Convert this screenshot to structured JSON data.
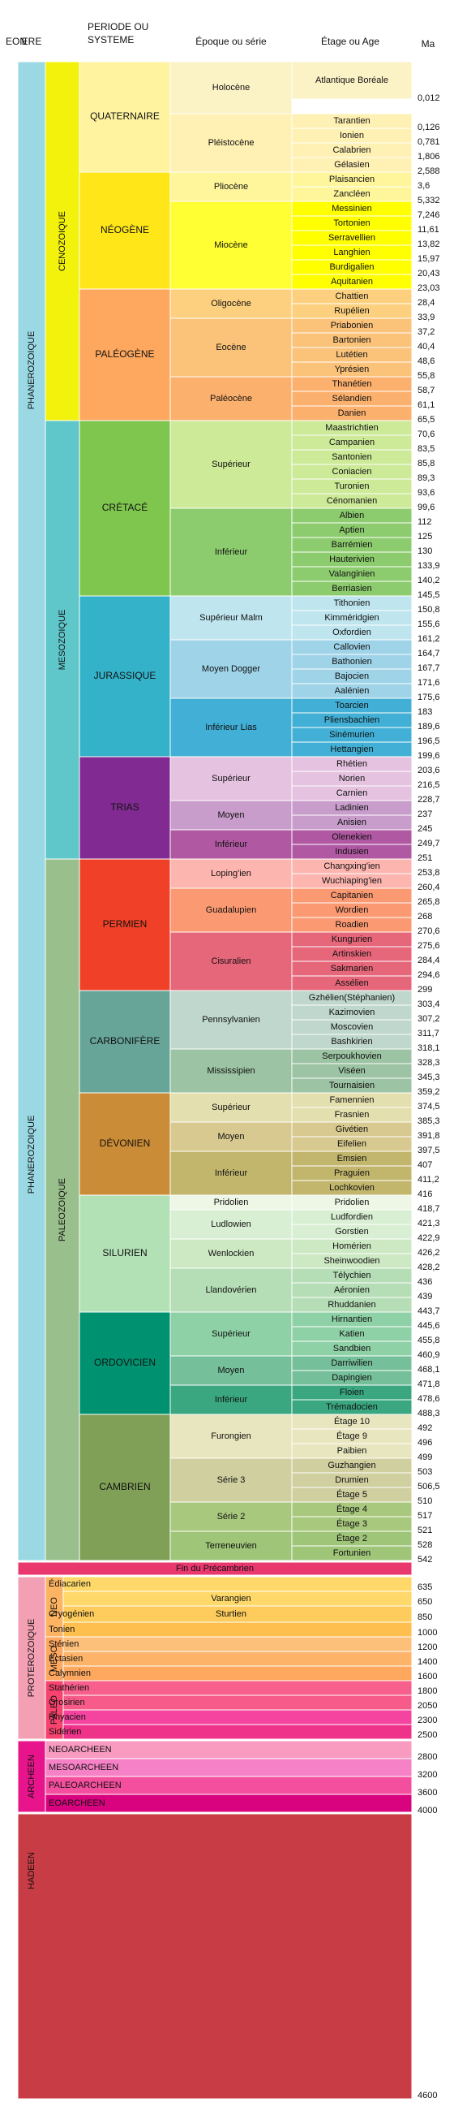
{
  "headers": {
    "eon": "EON",
    "ere": "ERE",
    "periode": "PERIODE OU SYSTEME",
    "epoque": "Époque ou série",
    "etage": "Étage ou Age",
    "ma": "Ma"
  },
  "chart_data": {
    "type": "table",
    "title": "",
    "eons": [
      {
        "name": "PHANEROZOIQUE"
      },
      {
        "name": "PROTEROZOIQUE"
      },
      {
        "name": "ARCHEEN"
      },
      {
        "name": "HADEEN"
      }
    ],
    "eras": [
      {
        "name": "CENOZOIQUE"
      },
      {
        "name": "MESOZOIQUE"
      },
      {
        "name": "PALEOZOIQUE"
      },
      {
        "name": "NEO"
      },
      {
        "name": "MESO"
      },
      {
        "name": "PALEO"
      }
    ],
    "periods": [
      "QUATERNAIRE",
      "NÉOGÈNE",
      "PALÉOGÈNE",
      "CRÉTACÉ",
      "JURASSIQUE",
      "TRIAS",
      "PERMIEN",
      "CARBONIFÈRE",
      "DÉVONIEN",
      "SILURIEN",
      "ORDOVICIEN",
      "CAMBRIEN"
    ],
    "epochs": [
      "Holocène",
      "Pléistocène",
      "Pliocène",
      "Miocène",
      "Oligocène",
      "Eocène",
      "Paléocène",
      "Supérieur",
      "Inférieur",
      "Supérieur Malm",
      "Moyen Dogger",
      "Inférieur Lias",
      "Supérieur",
      "Moyen",
      "Inférieur",
      "Loping'ien",
      "Guadalupien",
      "Cisuralien",
      "Pennsylvanien",
      "Mississipien",
      "Supérieur",
      "Moyen",
      "Inférieur",
      "Pridolien",
      "Ludlowien",
      "Wenlockien",
      "Llandovérien",
      "Supérieur",
      "Moyen",
      "Inférieur",
      "Furongien",
      "Série 3",
      "Série 2",
      "Terreneuvien"
    ],
    "stages": [
      {
        "name": "Atlantique Boréale",
        "ma": "0,012"
      },
      {
        "name": "",
        "ma": ""
      },
      {
        "name": "Tarantien",
        "ma": "0,126"
      },
      {
        "name": "Ionien",
        "ma": "0,781"
      },
      {
        "name": "Calabrien",
        "ma": "1,806"
      },
      {
        "name": "Gélasien",
        "ma": "2,588"
      },
      {
        "name": "Plaisancien",
        "ma": "3,6"
      },
      {
        "name": "Zancléen",
        "ma": "5,332"
      },
      {
        "name": "Messinien",
        "ma": "7,246"
      },
      {
        "name": "Tortonien",
        "ma": "11,61"
      },
      {
        "name": "Serravellien",
        "ma": "13,82"
      },
      {
        "name": "Langhien",
        "ma": "15,97"
      },
      {
        "name": "Burdigalien",
        "ma": "20,43"
      },
      {
        "name": "Aquitanien",
        "ma": "23,03"
      },
      {
        "name": "Chattien",
        "ma": "28,4"
      },
      {
        "name": "Rupélien",
        "ma": "33,9"
      },
      {
        "name": "Priabonien",
        "ma": "37,2"
      },
      {
        "name": "Bartonien",
        "ma": "40,4"
      },
      {
        "name": "Lutétien",
        "ma": "48,6"
      },
      {
        "name": "Yprésien",
        "ma": "55,8"
      },
      {
        "name": "Thanétien",
        "ma": "58,7"
      },
      {
        "name": "Sélandien",
        "ma": "61,1"
      },
      {
        "name": "Danien",
        "ma": "65,5"
      },
      {
        "name": "Maastrichtien",
        "ma": "70,6"
      },
      {
        "name": "Campanien",
        "ma": "83,5"
      },
      {
        "name": "Santonien",
        "ma": "85,8"
      },
      {
        "name": "Coniacien",
        "ma": "89,3"
      },
      {
        "name": "Turonien",
        "ma": "93,6"
      },
      {
        "name": "Cénomanien",
        "ma": "99,6"
      },
      {
        "name": "Albien",
        "ma": "112"
      },
      {
        "name": "Aptien",
        "ma": "125"
      },
      {
        "name": "Barrémien",
        "ma": "130"
      },
      {
        "name": "Hauterivien",
        "ma": "133,9"
      },
      {
        "name": "Valanginien",
        "ma": "140,2"
      },
      {
        "name": "Berriasien",
        "ma": "145,5"
      },
      {
        "name": "Tithonien",
        "ma": "150,8"
      },
      {
        "name": "Kimméridgien",
        "ma": "155,6"
      },
      {
        "name": "Oxfordien",
        "ma": "161,2"
      },
      {
        "name": "Callovien",
        "ma": "164,7"
      },
      {
        "name": "Bathonien",
        "ma": "167,7"
      },
      {
        "name": "Bajocien",
        "ma": "171,6"
      },
      {
        "name": "Aalénien",
        "ma": "175,6"
      },
      {
        "name": "Toarcien",
        "ma": "183"
      },
      {
        "name": "Pliensbachien",
        "ma": "189,6"
      },
      {
        "name": "Sinémurien",
        "ma": "196,5"
      },
      {
        "name": "Hettangien",
        "ma": "199,6"
      },
      {
        "name": "Rhétien",
        "ma": "203,6"
      },
      {
        "name": "Norien",
        "ma": "216,5"
      },
      {
        "name": "Carnien",
        "ma": "228,7"
      },
      {
        "name": "Ladinien",
        "ma": "237"
      },
      {
        "name": "Anisien",
        "ma": "245"
      },
      {
        "name": "Olenekien",
        "ma": "249,7"
      },
      {
        "name": "Indusien",
        "ma": "251"
      },
      {
        "name": "Changxing'ien",
        "ma": "253,8"
      },
      {
        "name": "Wuchiaping'ien",
        "ma": "260,4"
      },
      {
        "name": "Capitanien",
        "ma": "265,8"
      },
      {
        "name": "Wordien",
        "ma": "268"
      },
      {
        "name": "Roadien",
        "ma": "270,6"
      },
      {
        "name": "Kungurien",
        "ma": "275,6"
      },
      {
        "name": "Artinskien",
        "ma": "284,4"
      },
      {
        "name": "Sakmarien",
        "ma": "294,6"
      },
      {
        "name": "Assélien",
        "ma": "299"
      },
      {
        "name": "Gzhélien(Stéphanien)",
        "ma": "303,4"
      },
      {
        "name": "Kazimovien",
        "ma": "307,2"
      },
      {
        "name": "Moscovien",
        "ma": "311,7"
      },
      {
        "name": "Bashkirien",
        "ma": "318,1"
      },
      {
        "name": "Serpoukhovien",
        "ma": "328,3"
      },
      {
        "name": "Viséen",
        "ma": "345,3"
      },
      {
        "name": "Tournaisien",
        "ma": "359,2"
      },
      {
        "name": "Famennien",
        "ma": "374,5"
      },
      {
        "name": "Frasnien",
        "ma": "385,3"
      },
      {
        "name": "Givétien",
        "ma": "391,8"
      },
      {
        "name": "Eifelien",
        "ma": "397,5"
      },
      {
        "name": "Emsien",
        "ma": "407"
      },
      {
        "name": "Praguien",
        "ma": "411,2"
      },
      {
        "name": "Lochkovien",
        "ma": "416"
      },
      {
        "name": "Pridolien",
        "ma": "418,7"
      },
      {
        "name": "Ludfordien",
        "ma": "421,3"
      },
      {
        "name": "Gorstien",
        "ma": "422,9"
      },
      {
        "name": "Homérien",
        "ma": "426,2"
      },
      {
        "name": "Sheinwoodien",
        "ma": "428,2"
      },
      {
        "name": "Télychien",
        "ma": "436"
      },
      {
        "name": "Aéronien",
        "ma": "439"
      },
      {
        "name": "Rhuddanien",
        "ma": "443,7"
      },
      {
        "name": "Hirnantien",
        "ma": "445,6"
      },
      {
        "name": "Katien",
        "ma": "455,8"
      },
      {
        "name": "Sandbien",
        "ma": "460,9"
      },
      {
        "name": "Darriwilien",
        "ma": "468,1"
      },
      {
        "name": "Dapingien",
        "ma": "471,8"
      },
      {
        "name": "Floien",
        "ma": "478,6"
      },
      {
        "name": "Trémadocien",
        "ma": "488,3"
      },
      {
        "name": "Étage 10",
        "ma": "492"
      },
      {
        "name": "Étage 9",
        "ma": "496"
      },
      {
        "name": "Paibien",
        "ma": "499"
      },
      {
        "name": "Guzhangien",
        "ma": "503"
      },
      {
        "name": "Drumien",
        "ma": "506,5"
      },
      {
        "name": "Étage 5",
        "ma": "510"
      },
      {
        "name": "Étage 4",
        "ma": "517"
      },
      {
        "name": "Étage 3",
        "ma": "521"
      },
      {
        "name": "Étage 2",
        "ma": "528"
      },
      {
        "name": "Fortunien",
        "ma": "542"
      }
    ],
    "precambrian_banner": "Fin du Précambrien",
    "precambrian_rows": [
      {
        "name": "Édiacarien",
        "stage": "",
        "ma": "635"
      },
      {
        "name": "",
        "stage": "Varangien",
        "ma": "650"
      },
      {
        "name": "Cryogénien",
        "stage": "Sturtien",
        "ma": "850"
      },
      {
        "name": "Tonien",
        "stage": "",
        "ma": "1000"
      },
      {
        "name": "Sténien",
        "stage": "",
        "ma": "1200"
      },
      {
        "name": "Ectasien",
        "stage": "",
        "ma": "1400"
      },
      {
        "name": "Calymnien",
        "stage": "",
        "ma": "1600"
      },
      {
        "name": "Stathérien",
        "stage": "",
        "ma": "1800"
      },
      {
        "name": "Orosirien",
        "stage": "",
        "ma": "2050"
      },
      {
        "name": "Rhyacien",
        "stage": "",
        "ma": "2300"
      },
      {
        "name": "Sidérien",
        "stage": "",
        "ma": "2500"
      }
    ],
    "archean_rows": [
      {
        "name": "NEOARCHEEN",
        "ma": "2800"
      },
      {
        "name": "MESOARCHEEN",
        "ma": "3200"
      },
      {
        "name": "PALEOARCHEEN",
        "ma": "3600"
      },
      {
        "name": "EOARCHEEN",
        "ma": "4000"
      }
    ],
    "hadean_ma": "4600",
    "colors": {
      "phanerozoique": "#9ad9e4",
      "cenozoique": "#f2f20c",
      "mesozoique": "#5fc7ca",
      "paleozoique": "#99bf8c",
      "proterozoique": "#f4a0b4",
      "archeen": "#e8148c",
      "hadeen": "#c83c45",
      "precambrian_banner": "#e8386e"
    }
  }
}
